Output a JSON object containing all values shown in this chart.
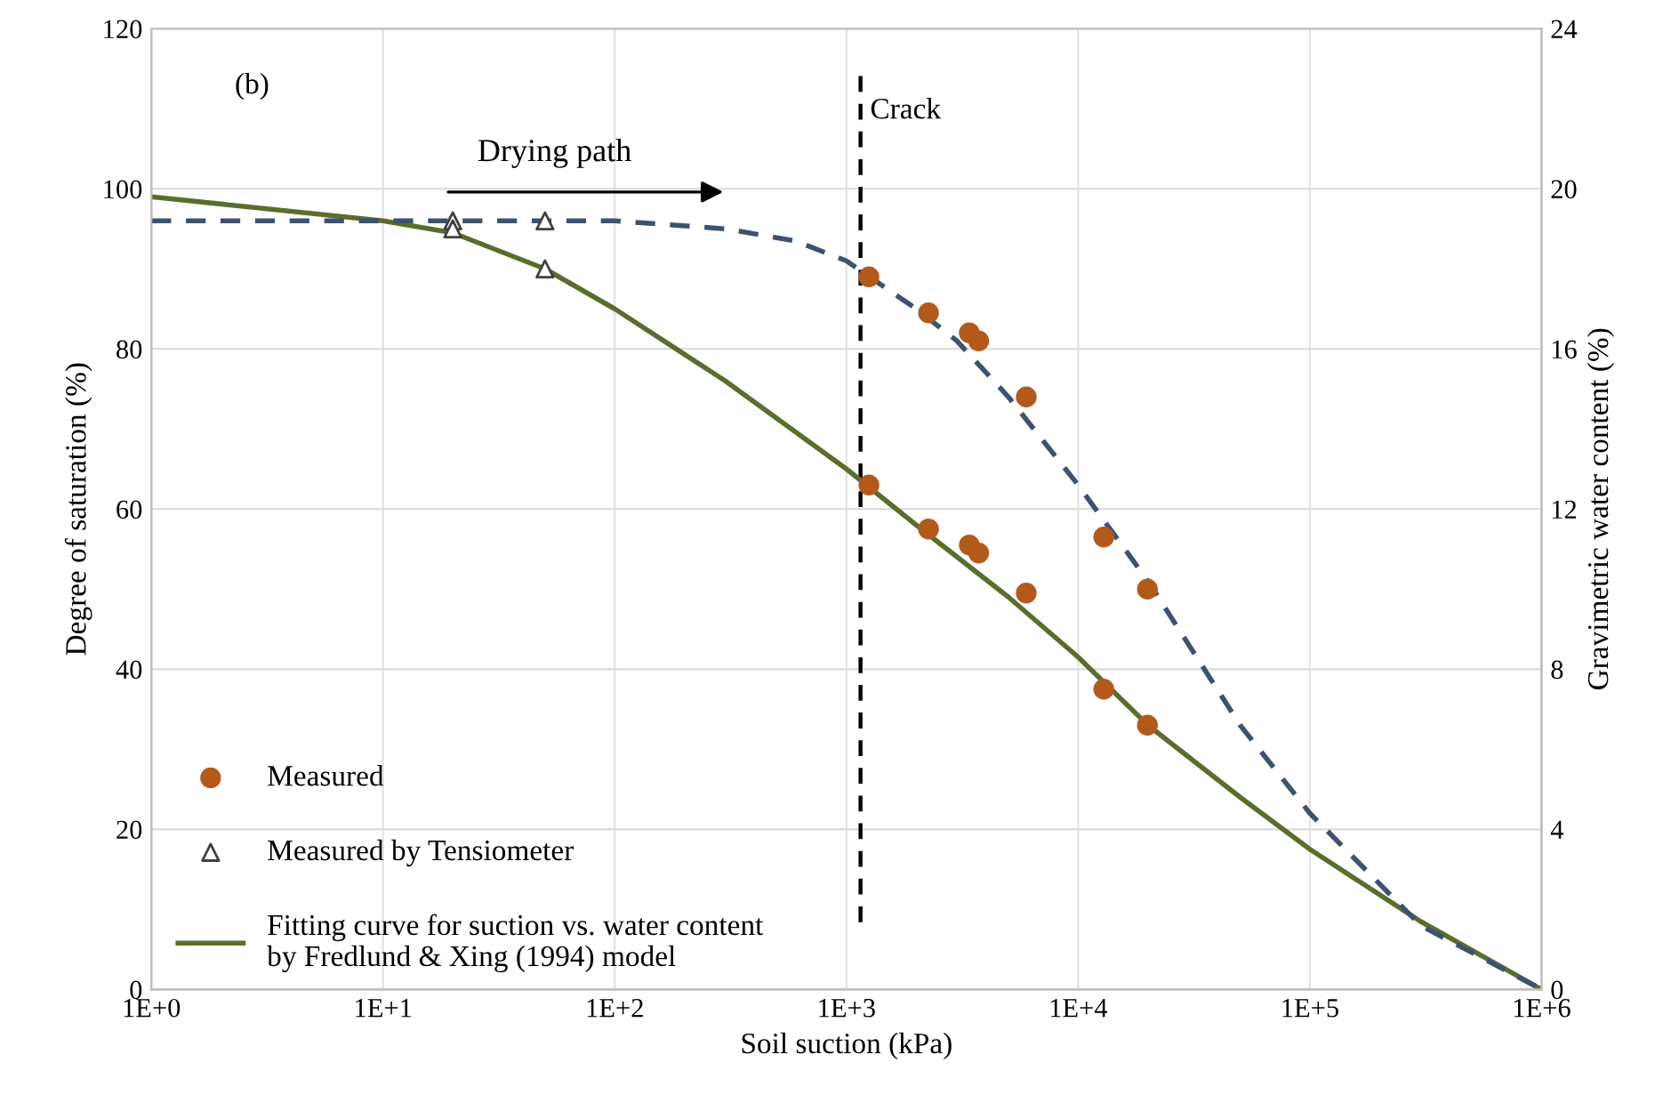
{
  "chart_data": {
    "type": "scatter",
    "xlabel": "Soil suction (kPa)",
    "ylabel": "Degree of saturation (%)",
    "y2label": "Gravimetric water content (%)",
    "log": "x",
    "xlim": [
      1,
      1000000
    ],
    "xticks": [
      {
        "value": 1,
        "label": "1E+0"
      },
      {
        "value": 10,
        "label": "1E+1"
      },
      {
        "value": 100,
        "label": "1E+2"
      },
      {
        "value": 1000,
        "label": "1E+3"
      },
      {
        "value": 10000,
        "label": "1E+4"
      },
      {
        "value": 100000,
        "label": "1E+5"
      },
      {
        "value": 1000000,
        "label": "1E+6"
      }
    ],
    "ylim": [
      0,
      120
    ],
    "yticks": [
      0,
      20,
      40,
      60,
      80,
      100,
      120
    ],
    "y2lim": [
      0,
      24
    ],
    "y2ticks": [
      0,
      4,
      8,
      12,
      16,
      20,
      24
    ],
    "grid": true,
    "legend": "bottom left",
    "annotations": [
      "(b)",
      "Drying path"
    ],
    "ref_lines": [
      {
        "axis": "x",
        "value": 1150,
        "label": "Crack",
        "color": "#000000",
        "line_style": "dashed"
      }
    ],
    "series": [
      {
        "name": "Measured",
        "marker": "circle",
        "color": "#b35a1a",
        "x": [
          1250,
          2260,
          3390,
          3720,
          5970,
          12900,
          19900,
          1250,
          2260,
          3390,
          3720,
          5970,
          12900,
          19900
        ],
        "values": [
          63,
          57.5,
          55.5,
          54.5,
          49.5,
          37.5,
          33,
          89,
          84.5,
          82,
          81,
          74,
          56.5,
          50
        ]
      },
      {
        "name": "Measured by Tensiometer",
        "marker": "triangle",
        "color": "#404040",
        "x": [
          20,
          20,
          50,
          50
        ],
        "values": [
          96,
          95,
          96,
          90
        ]
      },
      {
        "name": "Fitting curve for suction vs. water content\nby Fredlund & Xing (1994) model",
        "type": "line",
        "line_style": "solid",
        "color": "#5a6e2c",
        "x": [
          1,
          10,
          20,
          50,
          100,
          300,
          1000,
          2000,
          5000,
          10000,
          20000,
          50000,
          100000,
          300000,
          1000000
        ],
        "values": [
          99,
          96,
          94.5,
          90,
          85,
          76,
          65,
          58,
          49,
          41.5,
          33,
          24,
          17.5,
          8.5,
          0
        ]
      },
      {
        "type": "line",
        "line_style": "dashed",
        "color": "#3d5270",
        "x": [
          1,
          100,
          300,
          600,
          1000,
          2000,
          3000,
          5000,
          10000,
          20000,
          50000,
          100000,
          300000,
          1000000
        ],
        "values": [
          96,
          96,
          95,
          93.5,
          91,
          85,
          81,
          74,
          63,
          51,
          33,
          22,
          8,
          0
        ]
      }
    ]
  }
}
